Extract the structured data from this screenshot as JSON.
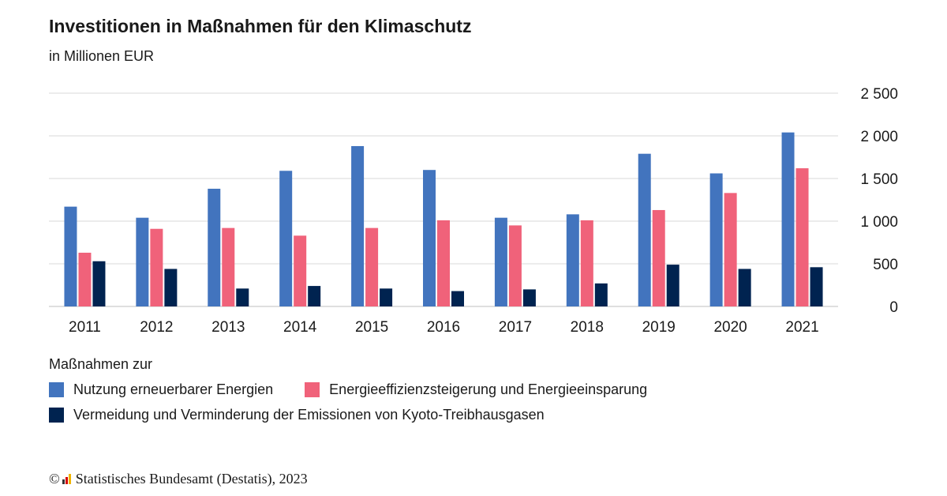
{
  "header": {
    "title": "Investitionen in Maßnahmen für den Klimaschutz",
    "subtitle": "in Millionen EUR"
  },
  "legend": {
    "title": "Maßnahmen zur"
  },
  "source": {
    "copyright": "©",
    "text": "Statistisches Bundesamt (Destatis), 2023"
  },
  "colors": {
    "renewables": "#4274be",
    "efficiency": "#f0627a",
    "emissions": "#002350",
    "grid": "#d9d9d9",
    "axis": "#bfbfbf"
  },
  "chart_data": {
    "type": "bar",
    "title": "Investitionen in Maßnahmen für den Klimaschutz",
    "subtitle": "in Millionen EUR",
    "categories": [
      "2011",
      "2012",
      "2013",
      "2014",
      "2015",
      "2016",
      "2017",
      "2018",
      "2019",
      "2020",
      "2021"
    ],
    "series": [
      {
        "name": "Nutzung erneuerbarer Energien",
        "color": "#4274be",
        "values": [
          1170,
          1040,
          1380,
          1590,
          1880,
          1600,
          1040,
          1080,
          1790,
          1560,
          2040
        ]
      },
      {
        "name": "Energieeffizienzsteigerung und Energieeinsparung",
        "color": "#f0627a",
        "values": [
          630,
          910,
          920,
          830,
          920,
          1010,
          950,
          1010,
          1130,
          1330,
          1620
        ]
      },
      {
        "name": "Vermeidung und Verminderung der Emissionen von Kyoto-Treibhausgasen",
        "color": "#002350",
        "values": [
          530,
          440,
          210,
          240,
          210,
          180,
          200,
          270,
          490,
          440,
          460
        ]
      }
    ],
    "ylim": [
      0,
      2500
    ],
    "yticks": [
      0,
      500,
      1000,
      1500,
      2000,
      2500
    ],
    "ytick_labels": [
      "0",
      "500",
      "1 000",
      "1 500",
      "2 000",
      "2 500"
    ],
    "yaxis_position": "right",
    "grid": true,
    "legend_position": "bottom"
  }
}
